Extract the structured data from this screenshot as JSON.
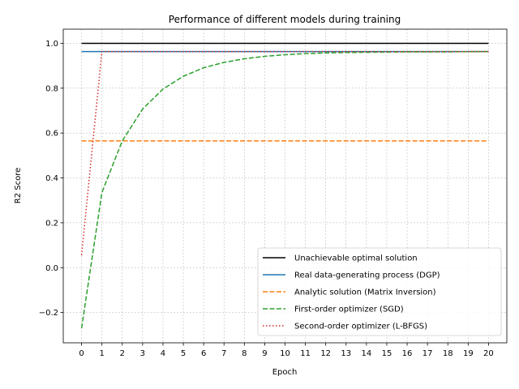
{
  "chart_data": {
    "type": "line",
    "title": "Performance of different models during training",
    "xlabel": "Epoch",
    "ylabel": "R2 Score",
    "xlim": [
      -0.9,
      20.9
    ],
    "ylim": [
      -0.335,
      1.063
    ],
    "x_ticks": [
      0,
      1,
      2,
      3,
      4,
      5,
      6,
      7,
      8,
      9,
      10,
      11,
      12,
      13,
      14,
      15,
      16,
      17,
      18,
      19,
      20
    ],
    "y_ticks": [
      -0.2,
      0.0,
      0.2,
      0.4,
      0.6,
      0.8,
      1.0
    ],
    "y_tick_labels": [
      "−0.2",
      "0.0",
      "0.2",
      "0.4",
      "0.6",
      "0.8",
      "1.0"
    ],
    "grid": true,
    "legend_position": "lower-right",
    "series": [
      {
        "name": "Unachievable optimal solution",
        "color": "#000000",
        "style": "solid",
        "x": [
          0,
          20
        ],
        "values": [
          1.0,
          1.0
        ]
      },
      {
        "name": "Real data-generating process (DGP)",
        "color": "#1f77b4",
        "style": "solid",
        "x": [
          0,
          20
        ],
        "values": [
          0.963,
          0.963
        ]
      },
      {
        "name": "Analytic solution (Matrix Inversion)",
        "color": "#ff7f0e",
        "style": "dashed",
        "x": [
          0,
          20
        ],
        "values": [
          0.565,
          0.565
        ]
      },
      {
        "name": "First-order optimizer (SGD)",
        "color": "#2ca02c",
        "style": "dashed",
        "x": [
          0,
          1,
          2,
          3,
          4,
          5,
          6,
          7,
          8,
          9,
          10,
          11,
          12,
          13,
          14,
          15,
          16,
          17,
          18,
          19,
          20
        ],
        "values": [
          -0.27,
          0.335,
          0.565,
          0.707,
          0.796,
          0.853,
          0.891,
          0.915,
          0.931,
          0.942,
          0.949,
          0.954,
          0.957,
          0.959,
          0.96,
          0.961,
          0.962,
          0.962,
          0.962,
          0.963,
          0.963
        ]
      },
      {
        "name": "Second-order optimizer (L-BFGS)",
        "color": "#d62728",
        "style": "dotted",
        "x": [
          0,
          1,
          2,
          3,
          4,
          5,
          6,
          7,
          8,
          9,
          10,
          11,
          12,
          13,
          14,
          15,
          16,
          17,
          18,
          19,
          20
        ],
        "values": [
          0.055,
          0.963,
          0.963,
          0.963,
          0.963,
          0.963,
          0.963,
          0.963,
          0.963,
          0.963,
          0.963,
          0.963,
          0.963,
          0.963,
          0.963,
          0.963,
          0.963,
          0.963,
          0.963,
          0.963,
          0.963
        ]
      }
    ]
  }
}
